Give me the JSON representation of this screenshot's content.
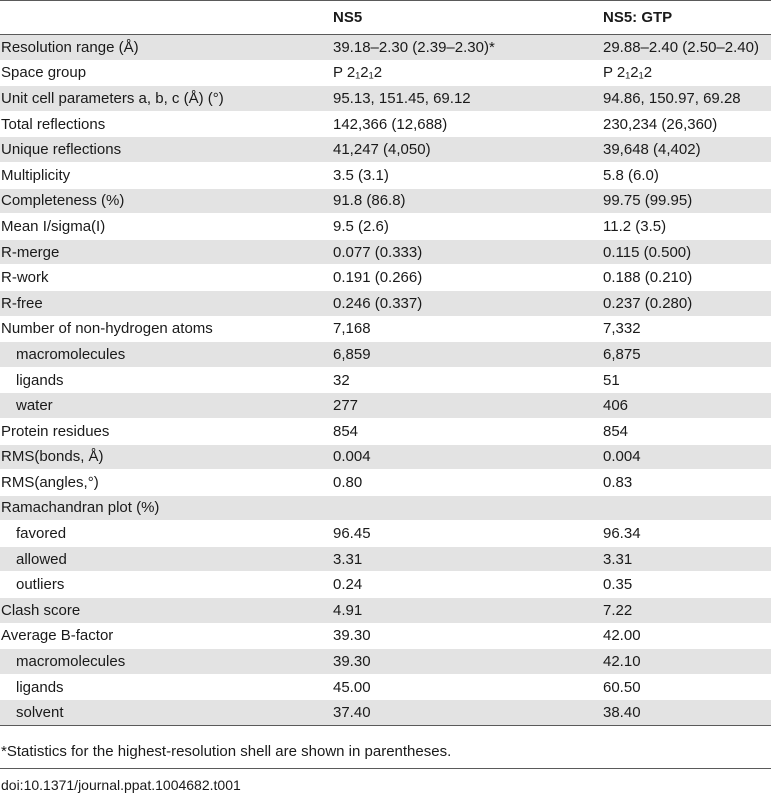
{
  "table": {
    "headers": [
      "",
      "NS5",
      "NS5: GTP"
    ],
    "rows": [
      {
        "label": "Resolution range (Å)",
        "ns5": "39.18–2.30 (2.39–2.30)*",
        "gtp": "29.88–2.40 (2.50–2.40)",
        "indent": false
      },
      {
        "label": "Space group",
        "ns5": "P 2₁2₁2",
        "gtp": "P 2₁2₁2",
        "indent": false
      },
      {
        "label": "Unit cell parameters a, b, c (Å) (°)",
        "ns5": "95.13, 151.45, 69.12",
        "gtp": "94.86, 150.97, 69.28",
        "indent": false
      },
      {
        "label": "Total reflections",
        "ns5": "142,366 (12,688)",
        "gtp": "230,234 (26,360)",
        "indent": false
      },
      {
        "label": "Unique reflections",
        "ns5": "41,247 (4,050)",
        "gtp": "39,648 (4,402)",
        "indent": false
      },
      {
        "label": "Multiplicity",
        "ns5": "3.5 (3.1)",
        "gtp": "5.8 (6.0)",
        "indent": false
      },
      {
        "label": "Completeness (%)",
        "ns5": "91.8 (86.8)",
        "gtp": "99.75 (99.95)",
        "indent": false
      },
      {
        "label": "Mean I/sigma(I)",
        "ns5": "9.5 (2.6)",
        "gtp": "11.2 (3.5)",
        "indent": false
      },
      {
        "label": "R-merge",
        "ns5": "0.077 (0.333)",
        "gtp": "0.115 (0.500)",
        "indent": false
      },
      {
        "label": "R-work",
        "ns5": "0.191 (0.266)",
        "gtp": "0.188 (0.210)",
        "indent": false
      },
      {
        "label": "R-free",
        "ns5": "0.246 (0.337)",
        "gtp": "0.237 (0.280)",
        "indent": false
      },
      {
        "label": "Number of non-hydrogen atoms",
        "ns5": "7,168",
        "gtp": "7,332",
        "indent": false
      },
      {
        "label": "macromolecules",
        "ns5": "6,859",
        "gtp": "6,875",
        "indent": true
      },
      {
        "label": "ligands",
        "ns5": "32",
        "gtp": "51",
        "indent": true
      },
      {
        "label": "water",
        "ns5": "277",
        "gtp": "406",
        "indent": true
      },
      {
        "label": "Protein residues",
        "ns5": "854",
        "gtp": "854",
        "indent": false
      },
      {
        "label": "RMS(bonds, Å)",
        "ns5": "0.004",
        "gtp": "0.004",
        "indent": false
      },
      {
        "label": "RMS(angles,°)",
        "ns5": "0.80",
        "gtp": "0.83",
        "indent": false
      },
      {
        "label": "Ramachandran plot (%)",
        "ns5": "",
        "gtp": "",
        "indent": false
      },
      {
        "label": "favored",
        "ns5": "96.45",
        "gtp": "96.34",
        "indent": true
      },
      {
        "label": "allowed",
        "ns5": "3.31",
        "gtp": "3.31",
        "indent": true
      },
      {
        "label": "outliers",
        "ns5": "0.24",
        "gtp": "0.35",
        "indent": true
      },
      {
        "label": "Clash score",
        "ns5": "4.91",
        "gtp": "7.22",
        "indent": false
      },
      {
        "label": "Average B-factor",
        "ns5": "39.30",
        "gtp": "42.00",
        "indent": false
      },
      {
        "label": "macromolecules",
        "ns5": "39.30",
        "gtp": "42.10",
        "indent": true
      },
      {
        "label": "ligands",
        "ns5": "45.00",
        "gtp": "60.50",
        "indent": true
      },
      {
        "label": "solvent",
        "ns5": "37.40",
        "gtp": "38.40",
        "indent": true
      }
    ],
    "shading": "alternate rows light gray, starting with first data row"
  },
  "footnote": "*Statistics for the highest-resolution shell are shown in parentheses.",
  "doi": "doi:10.1371/journal.ppat.1004682.t001",
  "colors": {
    "shade": "#e3e3e3",
    "rule": "#5a5a5a",
    "text": "#1a1a1a"
  }
}
